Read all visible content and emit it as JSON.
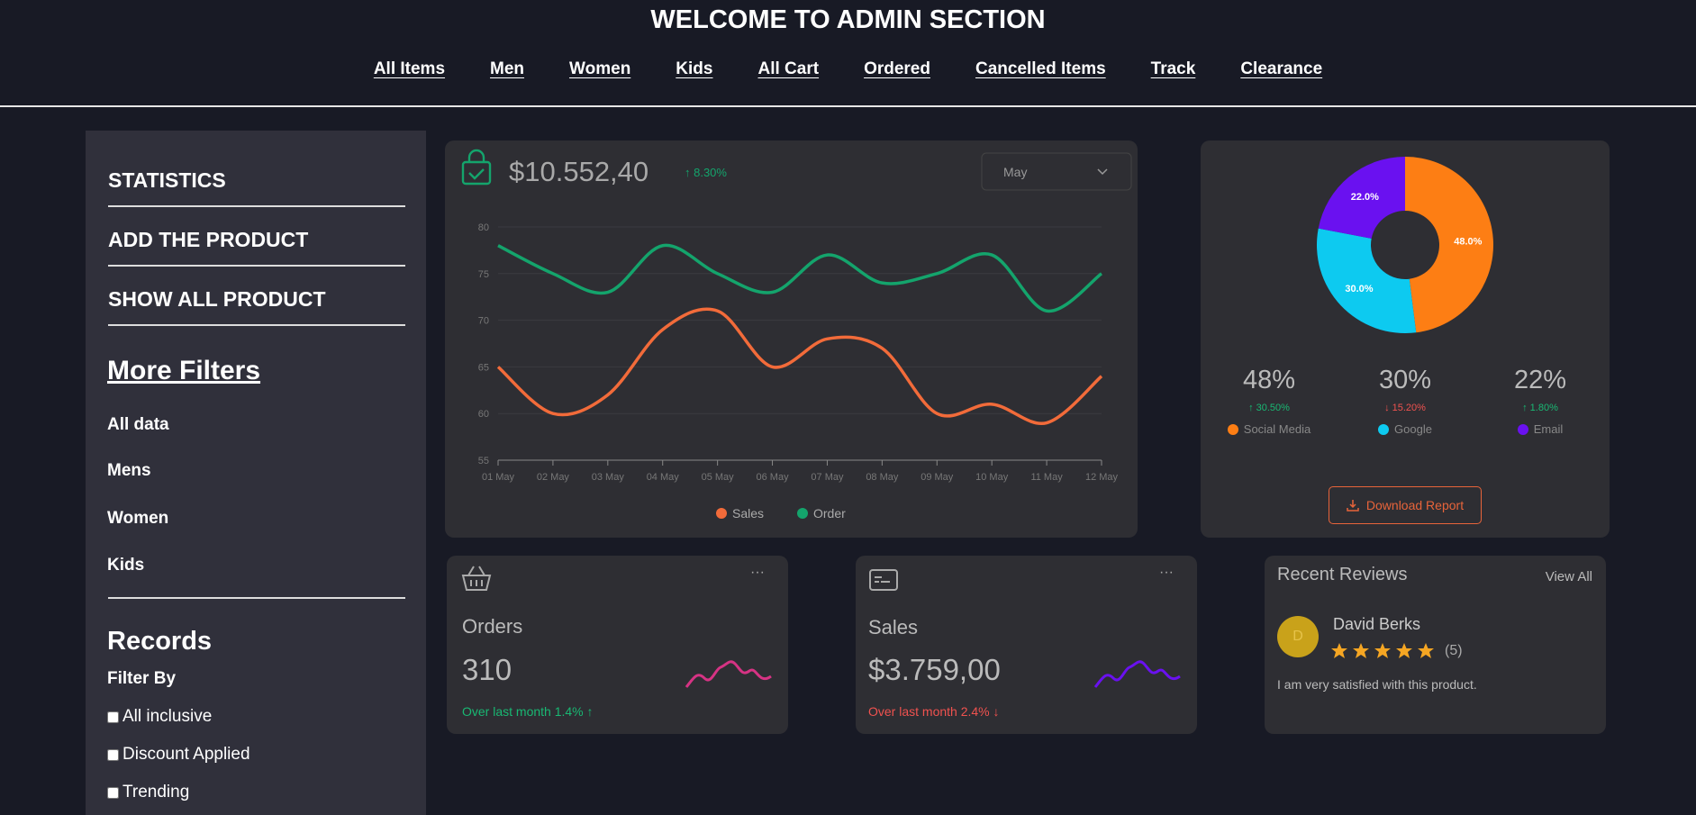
{
  "header": {
    "title": "WELCOME TO ADMIN SECTION",
    "nav": [
      "All Items",
      "Men",
      "Women",
      "Kids",
      "All Cart",
      "Ordered",
      "Cancelled Items",
      "Track",
      "Clearance"
    ]
  },
  "sidebar": {
    "menu": [
      "STATISTICS",
      "ADD THE PRODUCT",
      "SHOW ALL PRODUCT"
    ],
    "filters_title": "More Filters",
    "filters": [
      "All data",
      "Mens",
      "Women",
      "Kids"
    ],
    "records_title": "Records",
    "filter_by": "Filter By",
    "options": [
      "All inclusive",
      "Discount Applied",
      "Trending"
    ]
  },
  "revenue": {
    "amount": "$10.552,40",
    "change": "↑ 8.30%",
    "period": "May"
  },
  "chart_data": [
    {
      "type": "line",
      "x": [
        "01 May",
        "02 May",
        "03 May",
        "04 May",
        "05 May",
        "06 May",
        "07 May",
        "08 May",
        "09 May",
        "10 May",
        "11 May",
        "12 May"
      ],
      "ylim": [
        55,
        80
      ],
      "yticks": [
        55,
        60,
        65,
        70,
        75,
        80
      ],
      "grid": true,
      "series": [
        {
          "name": "Sales",
          "color": "#f26b3a",
          "values": [
            65,
            60,
            62,
            69,
            71,
            65,
            68,
            67,
            60,
            61,
            59,
            64
          ]
        },
        {
          "name": "Order",
          "color": "#14a46c",
          "values": [
            78,
            75,
            73,
            78,
            75,
            73,
            77,
            74,
            75,
            77,
            71,
            75
          ]
        }
      ]
    },
    {
      "type": "pie",
      "categories": [
        "Social Media",
        "Google",
        "Email"
      ],
      "values": [
        48,
        30,
        22
      ],
      "value_labels": [
        "48.0%",
        "30.0%",
        "22.0%"
      ],
      "colors": [
        "#fd7e14",
        "#0dcaf0",
        "#6a11f0"
      ]
    }
  ],
  "traffic": {
    "stats": [
      {
        "share": "48%",
        "change": "↑ 30.50%"
      },
      {
        "share": "30%",
        "change": "↓ 15.20%"
      },
      {
        "share": "22%",
        "change": "↑ 1.80%"
      }
    ],
    "button": "Download Report"
  },
  "cards": [
    {
      "title": "Orders",
      "value": "310",
      "note": "Over last month 1.4% ↑"
    },
    {
      "title": "Sales",
      "value": "$3.759,00",
      "note": "Over last month 2.4% ↓"
    }
  ],
  "reviews": {
    "title": "Recent Reviews",
    "link": "View All",
    "items": [
      {
        "initial": "D",
        "name": "David Berks",
        "rating": "(5)",
        "text": "I am very satisfied with this product."
      }
    ]
  }
}
